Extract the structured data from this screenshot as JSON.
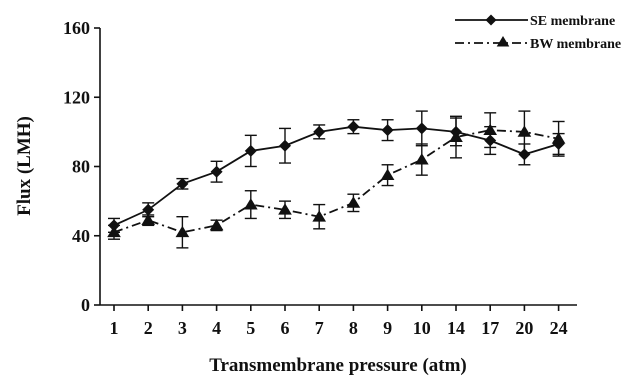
{
  "chart_data": {
    "type": "line",
    "title": "",
    "xlabel": "Transmembrane pressure (atm)",
    "ylabel": "Flux (LMH)",
    "categories": [
      "1",
      "2",
      "3",
      "4",
      "5",
      "6",
      "7",
      "8",
      "9",
      "10",
      "14",
      "17",
      "20",
      "24"
    ],
    "ylim": [
      0,
      160
    ],
    "yticks": [
      0,
      40,
      80,
      120,
      160
    ],
    "grid": false,
    "legend_position": "top-right",
    "series": [
      {
        "name": "SE membrane",
        "marker": "diamond",
        "line_style": "solid",
        "values": [
          46,
          55,
          70,
          77,
          89,
          92,
          100,
          103,
          101,
          102,
          100,
          95,
          87,
          93
        ],
        "errors": [
          4,
          4,
          3,
          6,
          9,
          10,
          4,
          4,
          6,
          10,
          8,
          8,
          6,
          6
        ]
      },
      {
        "name": "BW membrane",
        "marker": "triangle",
        "line_style": "dash-dot",
        "values": [
          42,
          49,
          42,
          46,
          58,
          55,
          51,
          59,
          75,
          84,
          97,
          101,
          100,
          96
        ],
        "errors": [
          4,
          3,
          9,
          3,
          8,
          5,
          7,
          5,
          6,
          9,
          12,
          10,
          12,
          10
        ]
      }
    ],
    "colors": {
      "line": "#111111",
      "background": "#ffffff"
    }
  }
}
